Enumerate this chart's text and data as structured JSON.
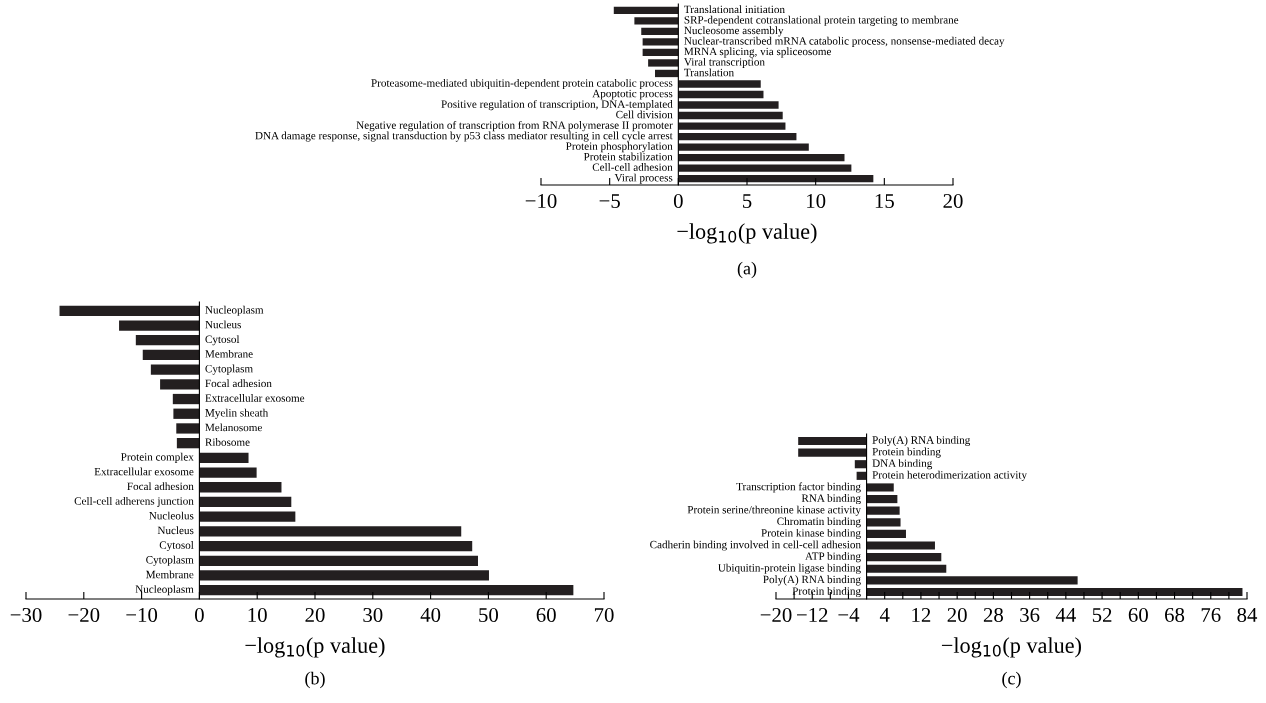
{
  "chart_data": [
    {
      "type": "bar",
      "orientation": "horizontal",
      "color": "#231f20",
      "xlabel": "−log$_{10}$(p value)",
      "annotations": [
        "(a)"
      ],
      "categories": [
        "Translational initiation",
        "SRP-dependent cotranslational protein targeting to membrane",
        "Nucleosome assembly",
        "Nuclear-transcribed mRNA catabolic process, nonsense-mediated decay",
        "MRNA splicing, via spliceosome",
        "Viral transcription",
        "Translation",
        "Proteasome-mediated ubiquitin-dependent protein catabolic process",
        "Apoptotic process",
        "Positive regulation of transcription, DNA-templated",
        "Cell division",
        "Negative regulation of transcription from RNA polymerase II promoter",
        "DNA damage response, signal transduction by p53 class mediator resulting in cell cycle arrest",
        "Protein phosphorylation",
        "Protein stabilization",
        "Cell-cell adhesion",
        "Viral process"
      ],
      "values": [
        -4.7,
        -3.2,
        -2.7,
        -2.6,
        -2.6,
        -2.2,
        -1.7,
        6.0,
        6.2,
        7.3,
        7.6,
        7.8,
        8.6,
        9.5,
        12.1,
        12.6,
        14.2
      ],
      "xlim": [
        -10,
        20
      ],
      "xticks": [
        {
          "value": -10,
          "label": "−10"
        },
        {
          "value": -5,
          "label": "−5"
        },
        0,
        5,
        10,
        15,
        20
      ]
    },
    {
      "type": "bar",
      "orientation": "horizontal",
      "color": "#231f20",
      "xlabel": "−log$_{10}$(p value)",
      "annotations": [
        "(b)"
      ],
      "categories": [
        "Nucleoplasm",
        "Nucleus",
        "Cytosol",
        "Membrane",
        "Cytoplasm",
        "Focal adhesion",
        "Extracellular exosome",
        "Myelin sheath",
        "Melanosome",
        "Ribosome",
        "Protein complex",
        "Extracellular exosome",
        "Focal adhesion",
        "Cell-cell adherens junction",
        "Nucleolus",
        "Nucleus",
        "Cytosol",
        "Cytoplasm",
        "Membrane",
        "Nucleoplasm"
      ],
      "values": [
        -24.2,
        -13.9,
        -11.0,
        -9.8,
        -8.4,
        -6.8,
        -4.6,
        -4.5,
        -4.0,
        -3.9,
        8.5,
        9.9,
        14.2,
        15.9,
        16.6,
        45.3,
        47.2,
        48.2,
        50.1,
        64.7
      ],
      "xlim": [
        -30,
        70
      ],
      "xticks": [
        {
          "value": -30,
          "label": "−30"
        },
        {
          "value": -20,
          "label": "−20"
        },
        {
          "value": -10,
          "label": "−10"
        },
        0,
        10,
        20,
        30,
        40,
        50,
        60,
        70
      ]
    },
    {
      "type": "bar",
      "orientation": "horizontal",
      "color": "#231f20",
      "xlabel": "−log$_{10}$(p value)",
      "annotations": [
        "(c)"
      ],
      "categories": [
        "Poly(A) RNA binding",
        "Protein binding",
        "DNA binding",
        "Protein heterodimerization activity",
        "Transcription factor binding",
        "RNA binding",
        "Protein serine/threonine kinase activity",
        "Chromatin binding",
        "Protein kinase binding",
        "Cadherin binding involved in cell-cell adhesion",
        "ATP binding",
        "Ubiquitin-protein ligase binding",
        "Poly(A) RNA binding",
        "Protein binding"
      ],
      "values": [
        -15.1,
        -15.1,
        -2.6,
        -2.2,
        6.0,
        6.8,
        7.3,
        7.5,
        8.7,
        15.1,
        16.5,
        17.6,
        46.6,
        83.0
      ],
      "xlim": [
        -20,
        84
      ],
      "xticks": [
        {
          "value": -20,
          "label": "−20"
        },
        {
          "value": -16,
          "label": null
        },
        {
          "value": -12,
          "label": "−12"
        },
        {
          "value": -8,
          "label": null
        },
        {
          "value": -4,
          "label": "−4"
        },
        {
          "value": 0,
          "label": null
        },
        4,
        {
          "value": 8,
          "label": null
        },
        12,
        {
          "value": 16,
          "label": null
        },
        20,
        {
          "value": 24,
          "label": null
        },
        28,
        {
          "value": 32,
          "label": null
        },
        36,
        {
          "value": 40,
          "label": null
        },
        44,
        {
          "value": 48,
          "label": null
        },
        52,
        {
          "value": 56,
          "label": null
        },
        60,
        {
          "value": 64,
          "label": null
        },
        68,
        {
          "value": 72,
          "label": null
        },
        76,
        {
          "value": 80,
          "label": null
        },
        84
      ]
    }
  ]
}
